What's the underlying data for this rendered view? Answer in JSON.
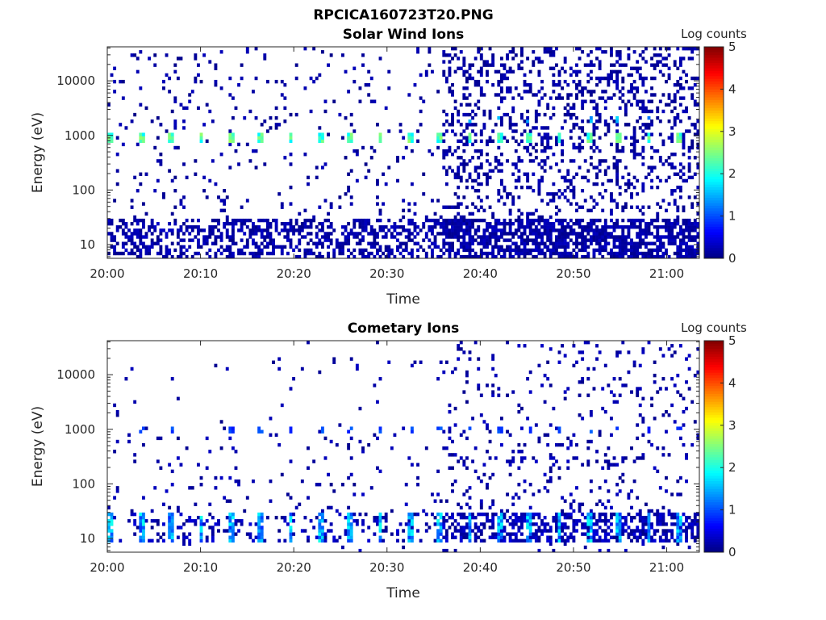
{
  "figure": {
    "title": "RPCICA160723T20.PNG"
  },
  "chart_data": [
    {
      "type": "heatmap",
      "title": "Solar Wind Ions",
      "xlabel": "Time",
      "ylabel": "Energy (eV)",
      "x_ticks": [
        "20:00",
        "20:10",
        "20:20",
        "20:30",
        "20:40",
        "20:50",
        "21:00"
      ],
      "x_range_minutes": [
        0,
        63.5
      ],
      "y_scale": "log",
      "y_ticks": [
        "10",
        "100",
        "1000",
        "10000"
      ],
      "y_range": [
        5.6,
        42000
      ],
      "colorbar": {
        "label": "Log counts",
        "ticks": [
          "0",
          "1",
          "2",
          "3",
          "4",
          "5"
        ],
        "range": [
          0,
          5
        ],
        "colormap": "jet"
      },
      "features": {
        "pulse_period_minutes": 3.2,
        "energy_peak_eV": 950,
        "peak_log_counts": 2.4,
        "secondary_peak_eV": 2000,
        "low_energy_band_eV": [
          6,
          28
        ]
      }
    },
    {
      "type": "heatmap",
      "title": "Cometary Ions",
      "xlabel": "Time",
      "ylabel": "Energy (eV)",
      "x_ticks": [
        "20:00",
        "20:10",
        "20:20",
        "20:30",
        "20:40",
        "20:50",
        "21:00"
      ],
      "x_range_minutes": [
        0,
        63.5
      ],
      "y_scale": "log",
      "y_ticks": [
        "10",
        "100",
        "1000",
        "10000"
      ],
      "y_range": [
        5.6,
        42000
      ],
      "colorbar": {
        "label": "Log counts",
        "ticks": [
          "0",
          "1",
          "2",
          "3",
          "4",
          "5"
        ],
        "range": [
          0,
          5
        ],
        "colormap": "jet"
      },
      "features": {
        "pulse_period_minutes": 3.2,
        "energy_peak_eV": 18,
        "peak_log_counts": 1.9,
        "secondary_peak_eV": 950,
        "low_energy_band_eV": [
          8,
          28
        ]
      }
    }
  ]
}
